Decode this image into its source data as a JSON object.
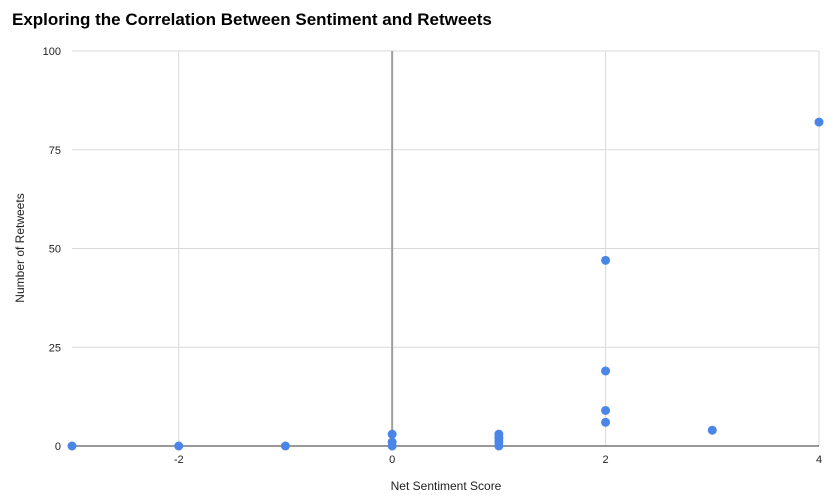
{
  "chart_data": {
    "type": "scatter",
    "title": "Exploring the Correlation Between Sentiment and Retweets",
    "xlabel": "Net Sentiment Score",
    "ylabel": "Number of Retweets",
    "xlim": [
      -3,
      4
    ],
    "ylim": [
      0,
      100
    ],
    "x_ticks": [
      -2,
      0,
      2,
      4
    ],
    "y_ticks": [
      0,
      25,
      50,
      75,
      100
    ],
    "grid": true,
    "legend": "none",
    "point_color": "#4a86e8",
    "points": [
      {
        "x": -3,
        "y": 0
      },
      {
        "x": -2,
        "y": 0
      },
      {
        "x": -1,
        "y": 0
      },
      {
        "x": 0,
        "y": 3
      },
      {
        "x": 0,
        "y": 1
      },
      {
        "x": 0,
        "y": 0
      },
      {
        "x": 1,
        "y": 3
      },
      {
        "x": 1,
        "y": 2
      },
      {
        "x": 1,
        "y": 1
      },
      {
        "x": 1,
        "y": 0
      },
      {
        "x": 2,
        "y": 47
      },
      {
        "x": 2,
        "y": 19
      },
      {
        "x": 2,
        "y": 9
      },
      {
        "x": 2,
        "y": 6
      },
      {
        "x": 3,
        "y": 4
      },
      {
        "x": 4,
        "y": 82
      }
    ]
  }
}
